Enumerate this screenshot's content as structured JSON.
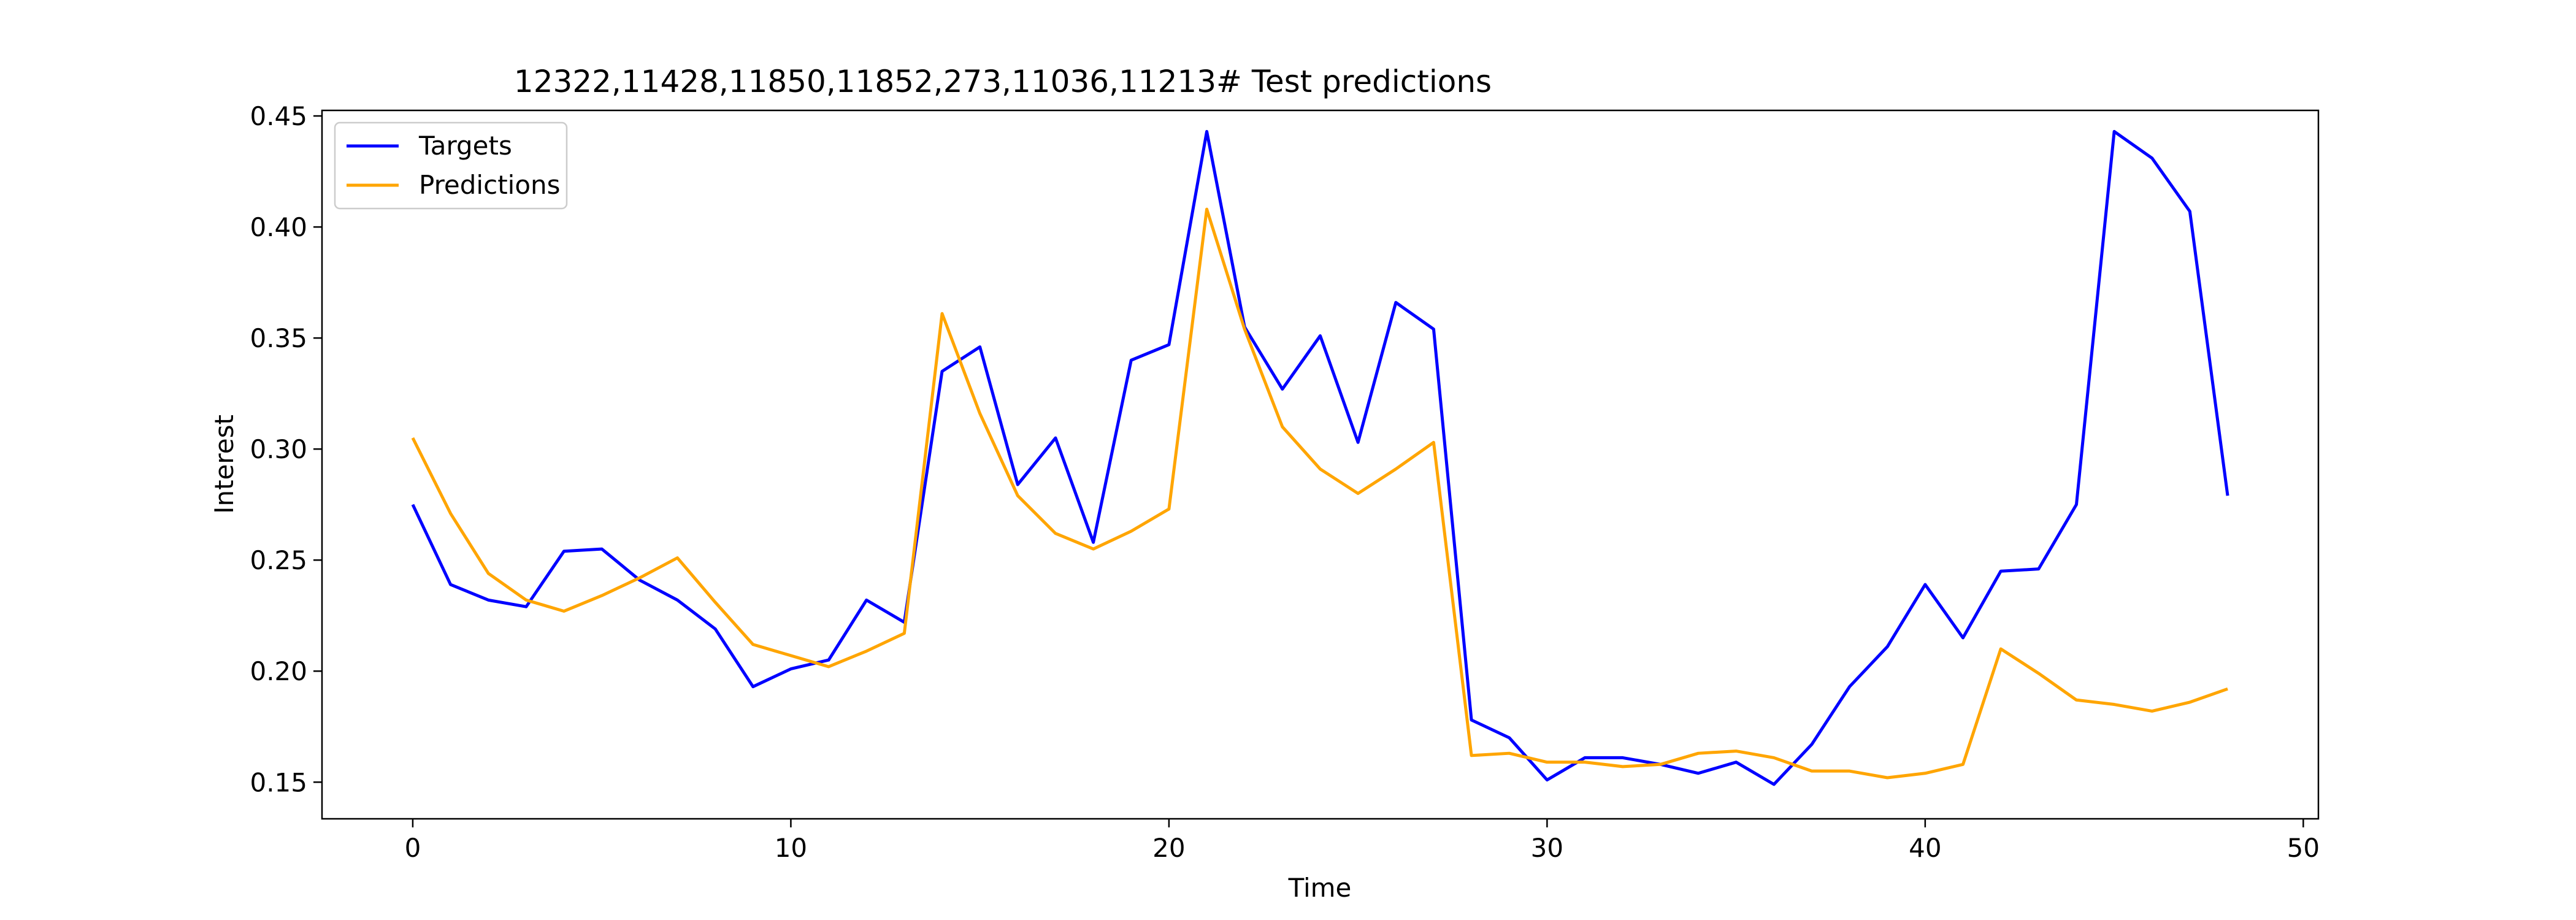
{
  "chart_data": {
    "type": "line",
    "title": "12322,11428,11850,11852,273,11036,11213# Test predictions",
    "xlabel": "Time",
    "ylabel": "Interest",
    "xlim": [
      -2.4,
      50.4
    ],
    "ylim": [
      0.1335,
      0.4525
    ],
    "xticks": [
      0,
      10,
      20,
      30,
      40,
      50
    ],
    "xtick_labels": [
      "0",
      "10",
      "20",
      "30",
      "40",
      "50"
    ],
    "yticks": [
      0.15,
      0.2,
      0.25,
      0.3,
      0.35,
      0.4,
      0.45
    ],
    "ytick_labels": [
      "0.15",
      "0.20",
      "0.25",
      "0.30",
      "0.35",
      "0.40",
      "0.45"
    ],
    "grid": false,
    "legend_position": "top-left",
    "x": [
      0,
      1,
      2,
      3,
      4,
      5,
      6,
      7,
      8,
      9,
      10,
      11,
      12,
      13,
      14,
      15,
      16,
      17,
      18,
      19,
      20,
      21,
      22,
      23,
      24,
      25,
      26,
      27,
      28,
      29,
      30,
      31,
      32,
      33,
      34,
      35,
      36,
      37,
      38,
      39,
      40,
      41,
      42,
      43,
      44,
      45,
      46,
      47,
      48
    ],
    "series": [
      {
        "name": "Targets",
        "color": "#0000ff",
        "values": [
          0.275,
          0.239,
          0.232,
          0.229,
          0.254,
          0.255,
          0.241,
          0.232,
          0.219,
          0.193,
          0.201,
          0.205,
          0.232,
          0.222,
          0.335,
          0.346,
          0.284,
          0.305,
          0.258,
          0.34,
          0.347,
          0.443,
          0.355,
          0.327,
          0.351,
          0.303,
          0.366,
          0.354,
          0.178,
          0.17,
          0.151,
          0.161,
          0.161,
          0.158,
          0.154,
          0.159,
          0.149,
          0.167,
          0.193,
          0.211,
          0.239,
          0.215,
          0.245,
          0.246,
          0.275,
          0.443,
          0.431,
          0.407,
          0.279
        ]
      },
      {
        "name": "Predictions",
        "color": "#ffa500",
        "values": [
          0.305,
          0.271,
          0.244,
          0.232,
          0.227,
          0.234,
          0.242,
          0.251,
          0.231,
          0.212,
          0.207,
          0.202,
          0.209,
          0.217,
          0.361,
          0.316,
          0.279,
          0.262,
          0.255,
          0.263,
          0.273,
          0.408,
          0.354,
          0.31,
          0.291,
          0.28,
          0.291,
          0.303,
          0.162,
          0.163,
          0.159,
          0.159,
          0.157,
          0.158,
          0.163,
          0.164,
          0.161,
          0.155,
          0.155,
          0.152,
          0.154,
          0.158,
          0.21,
          0.199,
          0.187,
          0.185,
          0.182,
          0.186,
          0.192
        ]
      }
    ]
  }
}
